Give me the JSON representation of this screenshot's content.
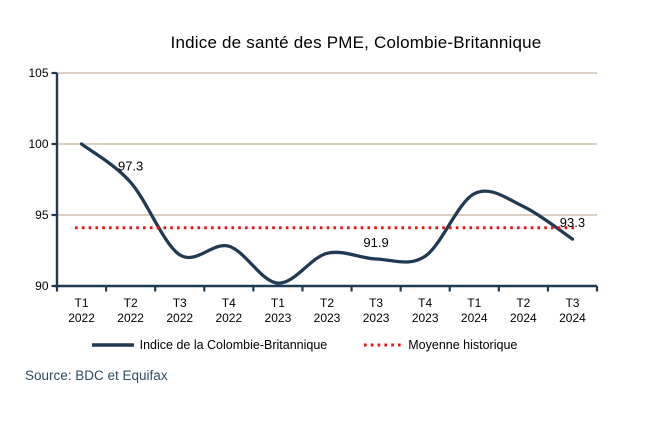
{
  "title": "Indice de santé des PME, Colombie-Britannique",
  "source_note": "Source: BDC et Equifax",
  "colors": {
    "index_line": "#1f3a52",
    "average_line": "#ee1111",
    "gridline": "#d9d0c3",
    "axis": "#1f3a52",
    "text": "#000000",
    "source_text": "#2e4d63",
    "background": "#ffffff"
  },
  "legend": {
    "position": "bottom",
    "items": [
      {
        "label": "Indice de la Colombie-Britannique",
        "style": "solid"
      },
      {
        "label": "Moyenne historique",
        "style": "dotted"
      }
    ]
  },
  "chart_data": {
    "type": "line",
    "title": "Indice de santé des PME, Colombie-Britannique",
    "categories": [
      "T1 2022",
      "T2 2022",
      "T3 2022",
      "T4 2022",
      "T1 2023",
      "T2 2023",
      "T3 2023",
      "T4 2023",
      "T1 2024",
      "T2 2024",
      "T3 2024"
    ],
    "series": [
      {
        "name": "Indice de la Colombie-Britannique",
        "style": "smooth-solid",
        "values": [
          100.0,
          97.3,
          92.2,
          92.8,
          90.2,
          92.3,
          91.9,
          92.1,
          96.5,
          95.6,
          93.3
        ]
      },
      {
        "name": "Moyenne historique",
        "style": "dotted-constant",
        "constant_value": 94.1
      }
    ],
    "ylim": [
      90,
      105
    ],
    "yticks": [
      90,
      95,
      100,
      105
    ],
    "grid": "horizontal",
    "legend_position": "bottom",
    "data_labels": [
      {
        "text": "97.3",
        "category": "T2 2022",
        "category_index": 1,
        "value": 97.3
      },
      {
        "text": "91.9",
        "category": "T3 2023",
        "category_index": 6,
        "value": 91.9
      },
      {
        "text": "93.3",
        "category": "T3 2024",
        "category_index": 10,
        "value": 93.3
      }
    ]
  }
}
